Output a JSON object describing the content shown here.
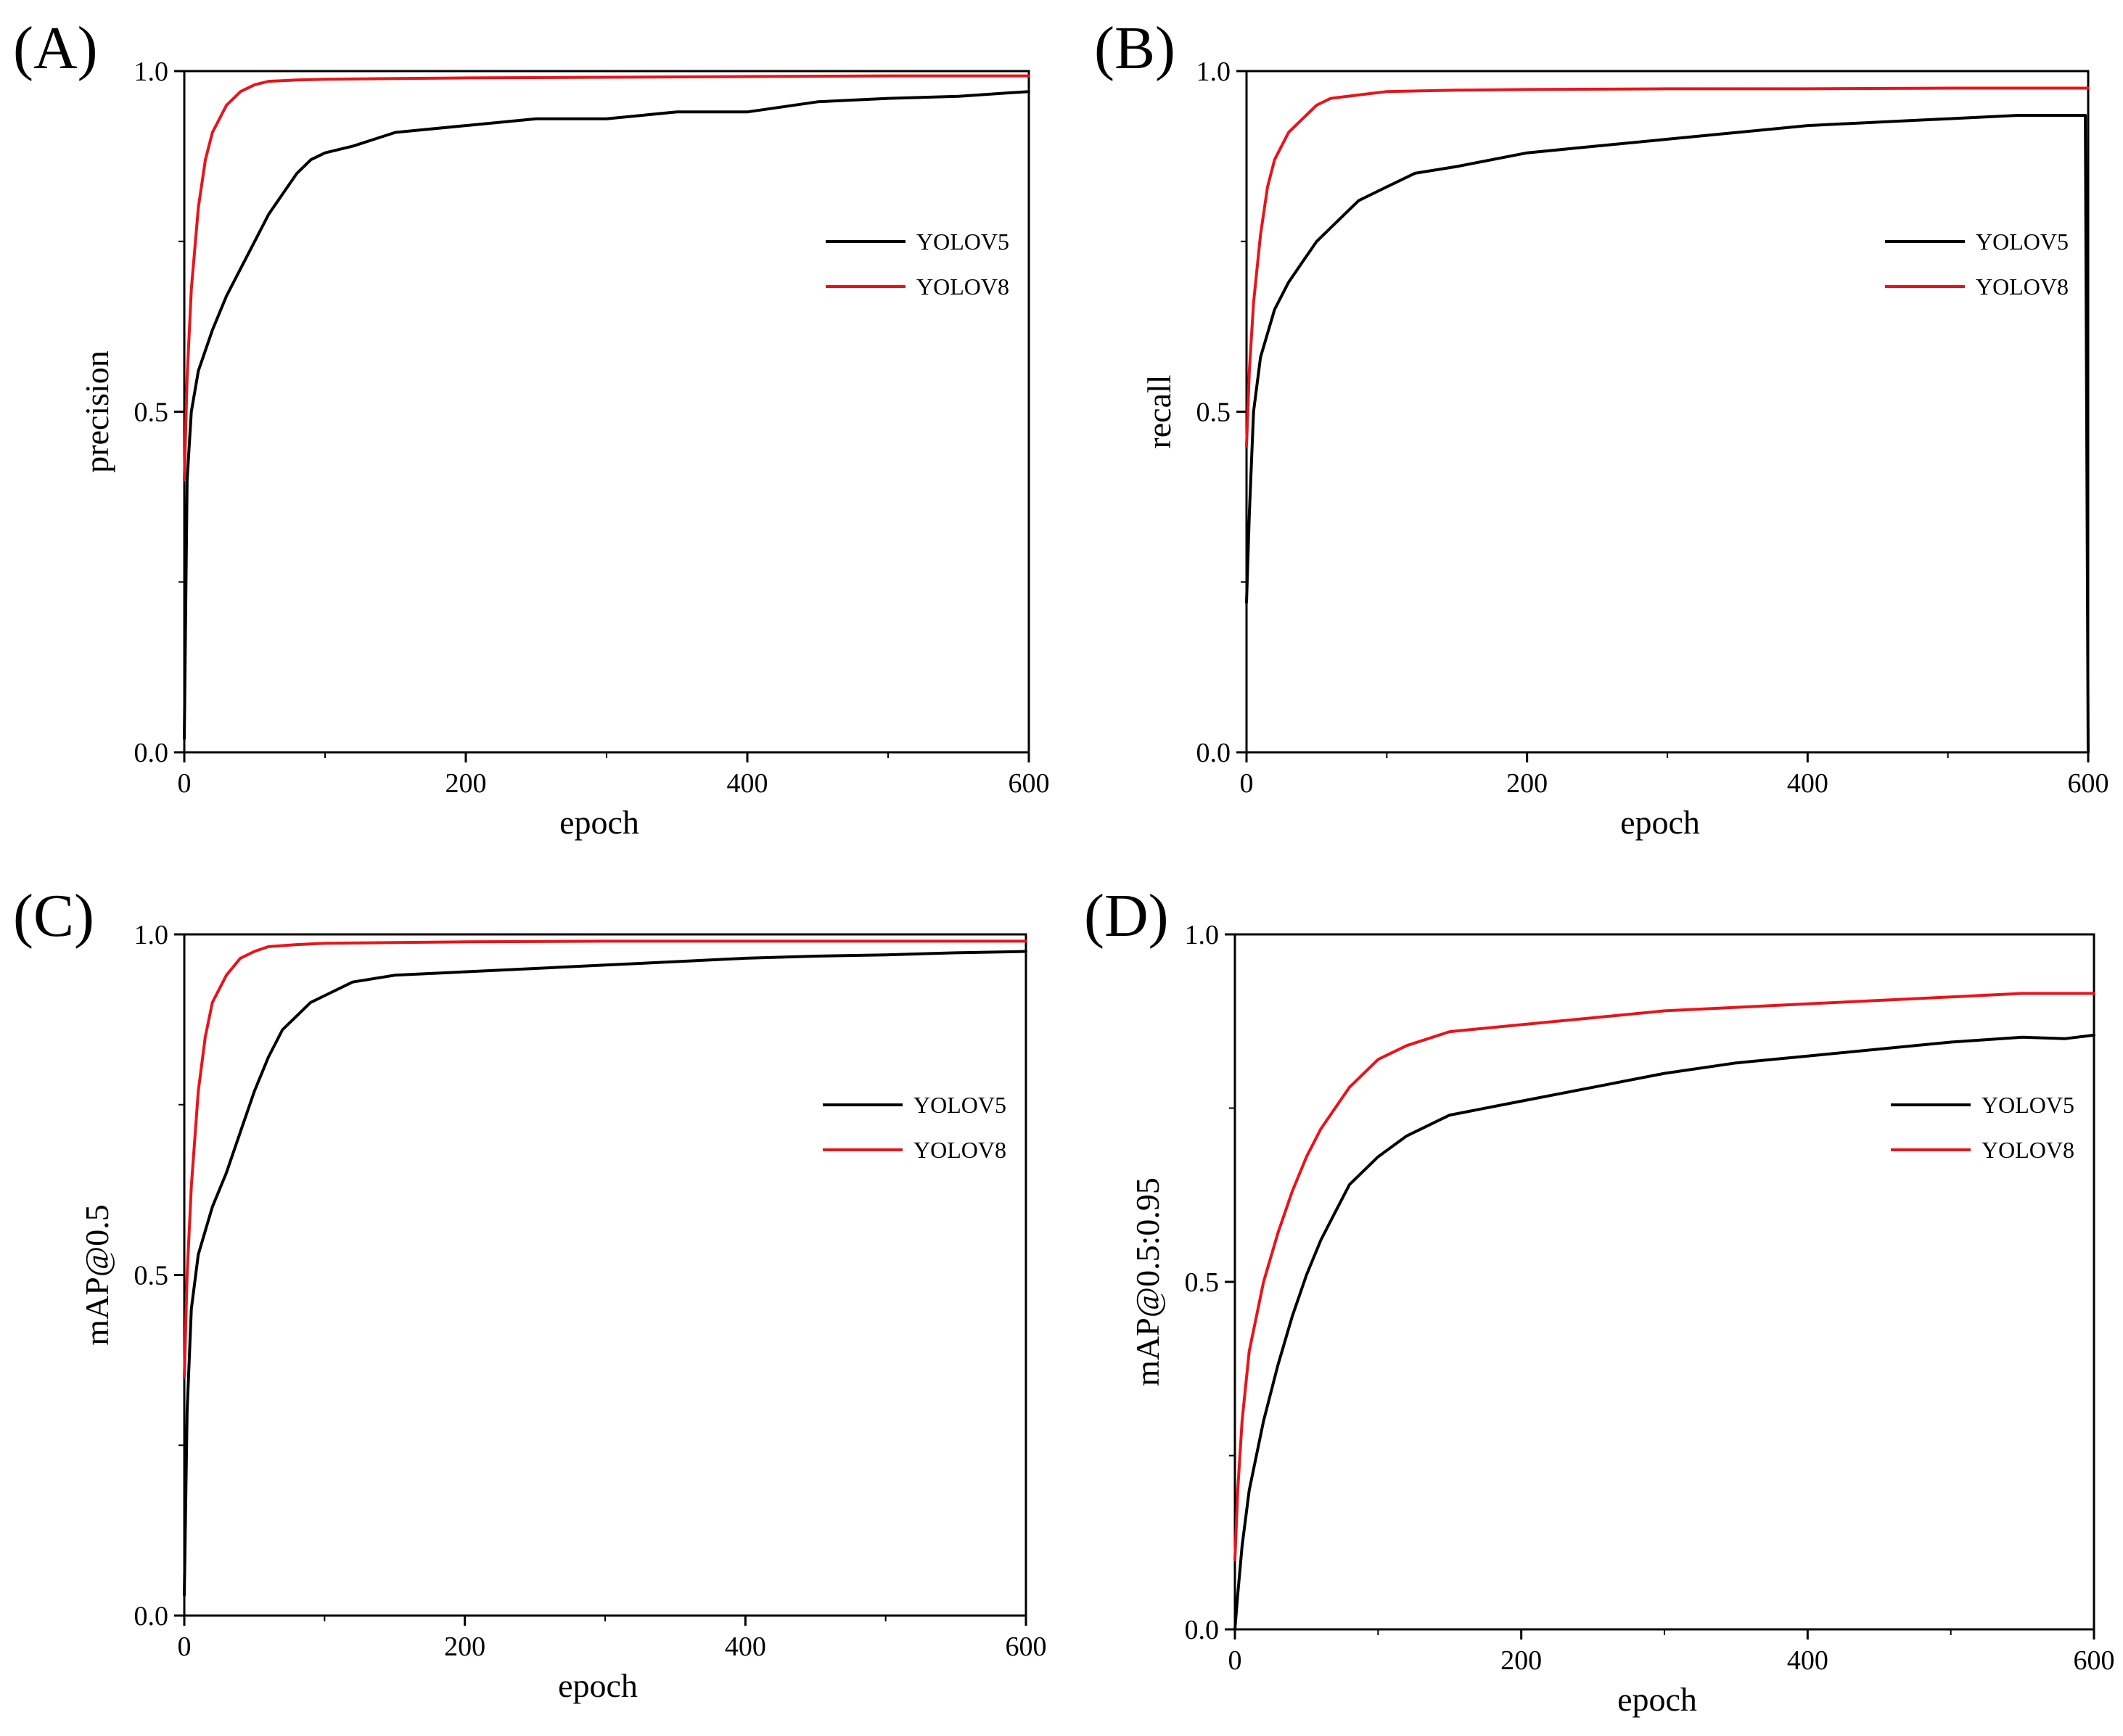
{
  "figure": {
    "colors": {
      "YOLOV5": "#000000",
      "YOLOV8": "#e8141a",
      "axis": "#000000"
    }
  },
  "chart_data": [
    {
      "id": "A",
      "panel_label": "(A)",
      "type": "line",
      "title": "",
      "xlabel": "epoch",
      "ylabel": "precision",
      "xlim": [
        0,
        600
      ],
      "ylim": [
        0,
        1.0
      ],
      "xticks": [
        0,
        200,
        400,
        600
      ],
      "xtick_labels": [
        "0",
        "200",
        "400",
        "600"
      ],
      "yticks": [
        0.0,
        0.5,
        1.0
      ],
      "ytick_labels": [
        "0.0",
        "0.5",
        "1.0"
      ],
      "legend_position": "center-right",
      "series": [
        {
          "name": "YOLOV5",
          "color": "#000000",
          "x": [
            0,
            2,
            5,
            10,
            20,
            30,
            40,
            50,
            60,
            70,
            80,
            90,
            100,
            120,
            150,
            200,
            250,
            300,
            350,
            400,
            450,
            500,
            550,
            600
          ],
          "y": [
            0.02,
            0.4,
            0.5,
            0.56,
            0.62,
            0.67,
            0.71,
            0.75,
            0.79,
            0.82,
            0.85,
            0.87,
            0.88,
            0.89,
            0.91,
            0.92,
            0.93,
            0.93,
            0.94,
            0.94,
            0.955,
            0.96,
            0.963,
            0.97
          ]
        },
        {
          "name": "YOLOV8",
          "color": "#e8141a",
          "x": [
            0,
            2,
            5,
            10,
            15,
            20,
            30,
            40,
            50,
            60,
            80,
            100,
            150,
            200,
            300,
            400,
            500,
            600
          ],
          "y": [
            0.4,
            0.55,
            0.68,
            0.8,
            0.87,
            0.91,
            0.95,
            0.97,
            0.98,
            0.985,
            0.987,
            0.988,
            0.989,
            0.99,
            0.991,
            0.992,
            0.993,
            0.993
          ]
        }
      ]
    },
    {
      "id": "B",
      "panel_label": "(B)",
      "type": "line",
      "title": "",
      "xlabel": "epoch",
      "ylabel": "recall",
      "xlim": [
        0,
        600
      ],
      "ylim": [
        0,
        1.0
      ],
      "xticks": [
        0,
        200,
        400,
        600
      ],
      "xtick_labels": [
        "0",
        "200",
        "400",
        "600"
      ],
      "yticks": [
        0.0,
        0.5,
        1.0
      ],
      "ytick_labels": [
        "0.0",
        "0.5",
        "1.0"
      ],
      "legend_position": "center-right",
      "series": [
        {
          "name": "YOLOV5",
          "color": "#000000",
          "x": [
            0,
            2,
            5,
            10,
            20,
            30,
            40,
            50,
            60,
            70,
            80,
            100,
            120,
            150,
            200,
            250,
            300,
            350,
            400,
            450,
            500,
            550,
            598,
            599,
            600
          ],
          "y": [
            0.22,
            0.35,
            0.5,
            0.58,
            0.65,
            0.69,
            0.72,
            0.75,
            0.77,
            0.79,
            0.81,
            0.83,
            0.85,
            0.86,
            0.88,
            0.89,
            0.9,
            0.91,
            0.92,
            0.925,
            0.93,
            0.935,
            0.935,
            0.45,
            0.0
          ]
        },
        {
          "name": "YOLOV8",
          "color": "#e8141a",
          "x": [
            0,
            2,
            5,
            10,
            15,
            20,
            30,
            40,
            50,
            60,
            80,
            100,
            150,
            200,
            300,
            400,
            500,
            600
          ],
          "y": [
            0.45,
            0.56,
            0.66,
            0.76,
            0.83,
            0.87,
            0.91,
            0.93,
            0.95,
            0.96,
            0.965,
            0.97,
            0.972,
            0.973,
            0.974,
            0.974,
            0.975,
            0.975
          ]
        }
      ]
    },
    {
      "id": "C",
      "panel_label": "(C)",
      "type": "line",
      "title": "",
      "xlabel": "epoch",
      "ylabel": "mAP@0.5",
      "xlim": [
        0,
        600
      ],
      "ylim": [
        0,
        1.0
      ],
      "xticks": [
        0,
        200,
        400,
        600
      ],
      "xtick_labels": [
        "0",
        "200",
        "400",
        "600"
      ],
      "yticks": [
        0.0,
        0.5,
        1.0
      ],
      "ytick_labels": [
        "0.0",
        "0.5",
        "1.0"
      ],
      "legend_position": "center-right",
      "series": [
        {
          "name": "YOLOV5",
          "color": "#000000",
          "x": [
            0,
            2,
            5,
            10,
            20,
            30,
            40,
            50,
            60,
            70,
            80,
            90,
            100,
            120,
            150,
            200,
            250,
            300,
            350,
            400,
            450,
            500,
            550,
            600
          ],
          "y": [
            0.03,
            0.3,
            0.45,
            0.53,
            0.6,
            0.65,
            0.71,
            0.77,
            0.82,
            0.86,
            0.88,
            0.9,
            0.91,
            0.93,
            0.94,
            0.945,
            0.95,
            0.955,
            0.96,
            0.965,
            0.968,
            0.97,
            0.973,
            0.975
          ]
        },
        {
          "name": "YOLOV8",
          "color": "#e8141a",
          "x": [
            0,
            2,
            5,
            10,
            15,
            20,
            30,
            40,
            50,
            60,
            80,
            100,
            150,
            200,
            300,
            400,
            500,
            600
          ],
          "y": [
            0.35,
            0.5,
            0.63,
            0.77,
            0.85,
            0.9,
            0.94,
            0.965,
            0.975,
            0.982,
            0.985,
            0.987,
            0.988,
            0.989,
            0.99,
            0.99,
            0.99,
            0.99
          ]
        }
      ]
    },
    {
      "id": "D",
      "panel_label": "(D)",
      "type": "line",
      "title": "",
      "xlabel": "epoch",
      "ylabel": "mAP@0.5:0.95",
      "xlim": [
        0,
        600
      ],
      "ylim": [
        0,
        1.0
      ],
      "xticks": [
        0,
        200,
        400,
        600
      ],
      "xtick_labels": [
        "0",
        "200",
        "400",
        "600"
      ],
      "yticks": [
        0.0,
        0.5,
        1.0
      ],
      "ytick_labels": [
        "0.0",
        "0.5",
        "1.0"
      ],
      "legend_position": "center-right",
      "series": [
        {
          "name": "YOLOV5",
          "color": "#000000",
          "x": [
            0,
            2,
            5,
            10,
            20,
            30,
            40,
            50,
            60,
            70,
            80,
            100,
            120,
            150,
            200,
            250,
            300,
            350,
            400,
            450,
            500,
            550,
            580,
            600
          ],
          "y": [
            0.0,
            0.05,
            0.12,
            0.2,
            0.3,
            0.38,
            0.45,
            0.51,
            0.56,
            0.6,
            0.64,
            0.68,
            0.71,
            0.74,
            0.76,
            0.78,
            0.8,
            0.815,
            0.825,
            0.835,
            0.845,
            0.852,
            0.85,
            0.855
          ]
        },
        {
          "name": "YOLOV8",
          "color": "#e8141a",
          "x": [
            0,
            2,
            5,
            10,
            20,
            30,
            40,
            50,
            60,
            70,
            80,
            100,
            120,
            150,
            200,
            250,
            300,
            350,
            400,
            450,
            500,
            550,
            600
          ],
          "y": [
            0.1,
            0.2,
            0.3,
            0.4,
            0.5,
            0.57,
            0.63,
            0.68,
            0.72,
            0.75,
            0.78,
            0.82,
            0.84,
            0.86,
            0.87,
            0.88,
            0.89,
            0.895,
            0.9,
            0.905,
            0.91,
            0.915,
            0.915
          ]
        }
      ]
    }
  ]
}
